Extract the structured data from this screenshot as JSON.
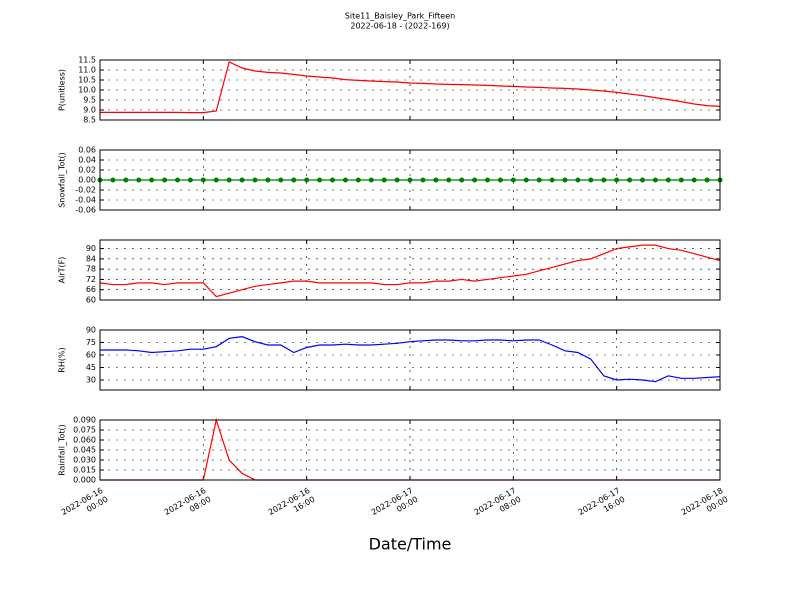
{
  "title": "Site11_Baisley_Park_Fifteen",
  "subtitle": "2022-06-18 - (2022-169)",
  "x_label": "Date/Time",
  "chart_data": [
    {
      "type": "line",
      "y_label": "P(unitless)",
      "grid": true,
      "x": [
        "2022-06-16 00:00",
        "2022-06-16 01:00",
        "2022-06-16 02:00",
        "2022-06-16 03:00",
        "2022-06-16 04:00",
        "2022-06-16 05:00",
        "2022-06-16 06:00",
        "2022-06-16 07:00",
        "2022-06-16 08:00",
        "2022-06-16 09:00",
        "2022-06-16 10:00",
        "2022-06-16 11:00",
        "2022-06-16 12:00",
        "2022-06-16 13:00",
        "2022-06-16 14:00",
        "2022-06-16 15:00",
        "2022-06-16 16:00",
        "2022-06-16 17:00",
        "2022-06-16 18:00",
        "2022-06-16 19:00",
        "2022-06-16 20:00",
        "2022-06-16 21:00",
        "2022-06-16 22:00",
        "2022-06-16 23:00",
        "2022-06-17 00:00",
        "2022-06-17 01:00",
        "2022-06-17 02:00",
        "2022-06-17 03:00",
        "2022-06-17 04:00",
        "2022-06-17 05:00",
        "2022-06-17 06:00",
        "2022-06-17 07:00",
        "2022-06-17 08:00",
        "2022-06-17 09:00",
        "2022-06-17 10:00",
        "2022-06-17 11:00",
        "2022-06-17 12:00",
        "2022-06-17 13:00",
        "2022-06-17 14:00",
        "2022-06-17 15:00",
        "2022-06-17 16:00",
        "2022-06-17 17:00",
        "2022-06-17 18:00",
        "2022-06-17 19:00",
        "2022-06-17 20:00",
        "2022-06-17 21:00",
        "2022-06-17 22:00",
        "2022-06-17 23:00",
        "2022-06-18 00:00"
      ],
      "xlim": [
        "2022-06-16 00:00",
        "2022-06-18 00:00"
      ],
      "xticks": [
        "2022-06-16 00:00",
        "2022-06-16 08:00",
        "2022-06-16 16:00",
        "2022-06-17 00:00",
        "2022-06-17 08:00",
        "2022-06-17 16:00",
        "2022-06-18 00:00"
      ],
      "ylim": [
        8.5,
        11.5
      ],
      "yticks": [
        8.5,
        {
          "value": 9,
          "label": "9.0"
        },
        9.5,
        {
          "value": 10,
          "label": "10.0"
        },
        10.5,
        {
          "value": 11,
          "label": "11.0"
        },
        11.5
      ],
      "series": [
        {
          "color": "#ff0000",
          "values": [
            8.88,
            8.88,
            8.88,
            8.88,
            8.88,
            8.88,
            8.88,
            8.87,
            8.87,
            8.95,
            11.4,
            11.1,
            10.95,
            10.88,
            10.85,
            10.78,
            10.7,
            10.65,
            10.6,
            10.52,
            10.48,
            10.45,
            10.42,
            10.4,
            10.35,
            10.33,
            10.3,
            10.28,
            10.27,
            10.25,
            10.23,
            10.2,
            10.18,
            10.15,
            10.13,
            10.1,
            10.08,
            10.05,
            10.0,
            9.95,
            9.88,
            9.8,
            9.72,
            9.62,
            9.52,
            9.42,
            9.3,
            9.22,
            9.18
          ]
        }
      ]
    },
    {
      "type": "line",
      "y_label": "Snowfall_Tot()",
      "grid": true,
      "marker": true,
      "x": [
        "2022-06-16 00:00",
        "2022-06-16 01:00",
        "2022-06-16 02:00",
        "2022-06-16 03:00",
        "2022-06-16 04:00",
        "2022-06-16 05:00",
        "2022-06-16 06:00",
        "2022-06-16 07:00",
        "2022-06-16 08:00",
        "2022-06-16 09:00",
        "2022-06-16 10:00",
        "2022-06-16 11:00",
        "2022-06-16 12:00",
        "2022-06-16 13:00",
        "2022-06-16 14:00",
        "2022-06-16 15:00",
        "2022-06-16 16:00",
        "2022-06-16 17:00",
        "2022-06-16 18:00",
        "2022-06-16 19:00",
        "2022-06-16 20:00",
        "2022-06-16 21:00",
        "2022-06-16 22:00",
        "2022-06-16 23:00",
        "2022-06-17 00:00",
        "2022-06-17 01:00",
        "2022-06-17 02:00",
        "2022-06-17 03:00",
        "2022-06-17 04:00",
        "2022-06-17 05:00",
        "2022-06-17 06:00",
        "2022-06-17 07:00",
        "2022-06-17 08:00",
        "2022-06-17 09:00",
        "2022-06-17 10:00",
        "2022-06-17 11:00",
        "2022-06-17 12:00",
        "2022-06-17 13:00",
        "2022-06-17 14:00",
        "2022-06-17 15:00",
        "2022-06-17 16:00",
        "2022-06-17 17:00",
        "2022-06-17 18:00",
        "2022-06-17 19:00",
        "2022-06-17 20:00",
        "2022-06-17 21:00",
        "2022-06-17 22:00",
        "2022-06-17 23:00",
        "2022-06-18 00:00"
      ],
      "xlim": [
        "2022-06-16 00:00",
        "2022-06-18 00:00"
      ],
      "xticks": [
        "2022-06-16 00:00",
        "2022-06-16 08:00",
        "2022-06-16 16:00",
        "2022-06-17 00:00",
        "2022-06-17 08:00",
        "2022-06-17 16:00",
        "2022-06-18 00:00"
      ],
      "ylim": [
        -0.06,
        0.06
      ],
      "yticks": [
        -0.06,
        -0.04,
        -0.02,
        {
          "value": 0,
          "label": "0.00"
        },
        0.02,
        0.04,
        0.06
      ],
      "series": [
        {
          "color": "#008000",
          "values": [
            0,
            0,
            0,
            0,
            0,
            0,
            0,
            0,
            0,
            0,
            0,
            0,
            0,
            0,
            0,
            0,
            0,
            0,
            0,
            0,
            0,
            0,
            0,
            0,
            0,
            0,
            0,
            0,
            0,
            0,
            0,
            0,
            0,
            0,
            0,
            0,
            0,
            0,
            0,
            0,
            0,
            0,
            0,
            0,
            0,
            0,
            0,
            0,
            0
          ]
        }
      ]
    },
    {
      "type": "line",
      "y_label": "AirT(F)",
      "grid": true,
      "x": [
        "2022-06-16 00:00",
        "2022-06-16 01:00",
        "2022-06-16 02:00",
        "2022-06-16 03:00",
        "2022-06-16 04:00",
        "2022-06-16 05:00",
        "2022-06-16 06:00",
        "2022-06-16 07:00",
        "2022-06-16 08:00",
        "2022-06-16 09:00",
        "2022-06-16 10:00",
        "2022-06-16 11:00",
        "2022-06-16 12:00",
        "2022-06-16 13:00",
        "2022-06-16 14:00",
        "2022-06-16 15:00",
        "2022-06-16 16:00",
        "2022-06-16 17:00",
        "2022-06-16 18:00",
        "2022-06-16 19:00",
        "2022-06-16 20:00",
        "2022-06-16 21:00",
        "2022-06-16 22:00",
        "2022-06-16 23:00",
        "2022-06-17 00:00",
        "2022-06-17 01:00",
        "2022-06-17 02:00",
        "2022-06-17 03:00",
        "2022-06-17 04:00",
        "2022-06-17 05:00",
        "2022-06-17 06:00",
        "2022-06-17 07:00",
        "2022-06-17 08:00",
        "2022-06-17 09:00",
        "2022-06-17 10:00",
        "2022-06-17 11:00",
        "2022-06-17 12:00",
        "2022-06-17 13:00",
        "2022-06-17 14:00",
        "2022-06-17 15:00",
        "2022-06-17 16:00",
        "2022-06-17 17:00",
        "2022-06-17 18:00",
        "2022-06-17 19:00",
        "2022-06-17 20:00",
        "2022-06-17 21:00",
        "2022-06-17 22:00",
        "2022-06-17 23:00",
        "2022-06-18 00:00"
      ],
      "xlim": [
        "2022-06-16 00:00",
        "2022-06-18 00:00"
      ],
      "xticks": [
        "2022-06-16 00:00",
        "2022-06-16 08:00",
        "2022-06-16 16:00",
        "2022-06-17 00:00",
        "2022-06-17 08:00",
        "2022-06-17 16:00",
        "2022-06-18 00:00"
      ],
      "ylim": [
        60,
        95
      ],
      "yticks": [
        60,
        66,
        72,
        78,
        84,
        90
      ],
      "series": [
        {
          "color": "#ff0000",
          "values": [
            70,
            69,
            69,
            70,
            70,
            69,
            70,
            70,
            70,
            62,
            64,
            66,
            68,
            69,
            70,
            71,
            71,
            70,
            70,
            70,
            70,
            70,
            69,
            69,
            70,
            70,
            71,
            71,
            72,
            71,
            72,
            73,
            74,
            75,
            77,
            79,
            81,
            83,
            84,
            87,
            90,
            91,
            92,
            92,
            90,
            89,
            87,
            85,
            83
          ]
        }
      ]
    },
    {
      "type": "line",
      "y_label": "RH(%)",
      "grid": true,
      "x": [
        "2022-06-16 00:00",
        "2022-06-16 01:00",
        "2022-06-16 02:00",
        "2022-06-16 03:00",
        "2022-06-16 04:00",
        "2022-06-16 05:00",
        "2022-06-16 06:00",
        "2022-06-16 07:00",
        "2022-06-16 08:00",
        "2022-06-16 09:00",
        "2022-06-16 10:00",
        "2022-06-16 11:00",
        "2022-06-16 12:00",
        "2022-06-16 13:00",
        "2022-06-16 14:00",
        "2022-06-16 15:00",
        "2022-06-16 16:00",
        "2022-06-16 17:00",
        "2022-06-16 18:00",
        "2022-06-16 19:00",
        "2022-06-16 20:00",
        "2022-06-16 21:00",
        "2022-06-16 22:00",
        "2022-06-16 23:00",
        "2022-06-17 00:00",
        "2022-06-17 01:00",
        "2022-06-17 02:00",
        "2022-06-17 03:00",
        "2022-06-17 04:00",
        "2022-06-17 05:00",
        "2022-06-17 06:00",
        "2022-06-17 07:00",
        "2022-06-17 08:00",
        "2022-06-17 09:00",
        "2022-06-17 10:00",
        "2022-06-17 11:00",
        "2022-06-17 12:00",
        "2022-06-17 13:00",
        "2022-06-17 14:00",
        "2022-06-17 15:00",
        "2022-06-17 16:00",
        "2022-06-17 17:00",
        "2022-06-17 18:00",
        "2022-06-17 19:00",
        "2022-06-17 20:00",
        "2022-06-17 21:00",
        "2022-06-17 22:00",
        "2022-06-17 23:00",
        "2022-06-18 00:00"
      ],
      "xlim": [
        "2022-06-16 00:00",
        "2022-06-18 00:00"
      ],
      "xticks": [
        "2022-06-16 00:00",
        "2022-06-16 08:00",
        "2022-06-16 16:00",
        "2022-06-17 00:00",
        "2022-06-17 08:00",
        "2022-06-17 16:00",
        "2022-06-18 00:00"
      ],
      "ylim": [
        18,
        90
      ],
      "yticks": [
        30,
        45,
        60,
        75,
        90
      ],
      "series": [
        {
          "color": "#0000ff",
          "values": [
            66,
            66,
            66,
            65,
            63,
            64,
            65,
            67,
            67,
            70,
            80,
            82,
            76,
            72,
            72,
            63,
            69,
            72,
            72,
            73,
            72,
            72,
            73,
            74,
            76,
            77,
            78,
            78,
            77,
            77,
            78,
            78,
            77,
            78,
            78,
            72,
            65,
            63,
            55,
            35,
            30,
            31,
            30,
            28,
            35,
            32,
            32,
            33,
            34
          ]
        }
      ]
    },
    {
      "type": "line",
      "y_label": "Rainfall_Tot()",
      "grid": true,
      "x": [
        "2022-06-16 00:00",
        "2022-06-16 01:00",
        "2022-06-16 02:00",
        "2022-06-16 03:00",
        "2022-06-16 04:00",
        "2022-06-16 05:00",
        "2022-06-16 06:00",
        "2022-06-16 07:00",
        "2022-06-16 08:00",
        "2022-06-16 09:00",
        "2022-06-16 10:00",
        "2022-06-16 11:00",
        "2022-06-16 12:00",
        "2022-06-16 13:00",
        "2022-06-16 14:00",
        "2022-06-16 15:00",
        "2022-06-16 16:00",
        "2022-06-16 17:00",
        "2022-06-16 18:00",
        "2022-06-16 19:00",
        "2022-06-16 20:00",
        "2022-06-16 21:00",
        "2022-06-16 22:00",
        "2022-06-16 23:00",
        "2022-06-17 00:00",
        "2022-06-17 01:00",
        "2022-06-17 02:00",
        "2022-06-17 03:00",
        "2022-06-17 04:00",
        "2022-06-17 05:00",
        "2022-06-17 06:00",
        "2022-06-17 07:00",
        "2022-06-17 08:00",
        "2022-06-17 09:00",
        "2022-06-17 10:00",
        "2022-06-17 11:00",
        "2022-06-17 12:00",
        "2022-06-17 13:00",
        "2022-06-17 14:00",
        "2022-06-17 15:00",
        "2022-06-17 16:00",
        "2022-06-17 17:00",
        "2022-06-17 18:00",
        "2022-06-17 19:00",
        "2022-06-17 20:00",
        "2022-06-17 21:00",
        "2022-06-17 22:00",
        "2022-06-17 23:00",
        "2022-06-18 00:00"
      ],
      "xlim": [
        "2022-06-16 00:00",
        "2022-06-18 00:00"
      ],
      "xticks": [
        "2022-06-16 00:00",
        "2022-06-16 08:00",
        "2022-06-16 16:00",
        "2022-06-17 00:00",
        "2022-06-17 08:00",
        "2022-06-17 16:00",
        "2022-06-18 00:00"
      ],
      "ylim": [
        0,
        0.09
      ],
      "yticks": [
        {
          "value": 0,
          "label": "0.000"
        },
        0.015,
        {
          "value": 0.03,
          "label": "0.030"
        },
        0.045,
        {
          "value": 0.06,
          "label": "0.060"
        },
        0.075,
        {
          "value": 0.09,
          "label": "0.090"
        }
      ],
      "series": [
        {
          "color": "#ff0000",
          "values": [
            0,
            0,
            0,
            0,
            0,
            0,
            0,
            0,
            0,
            0.09,
            0.03,
            0.01,
            0,
            0,
            0,
            0,
            0,
            0,
            0,
            0,
            0,
            0,
            0,
            0,
            0,
            0,
            0,
            0,
            0,
            0,
            0,
            0,
            0,
            0,
            0,
            0,
            0,
            0,
            0,
            0,
            0,
            0,
            0,
            0,
            0,
            0,
            0,
            0,
            0
          ]
        }
      ]
    }
  ]
}
